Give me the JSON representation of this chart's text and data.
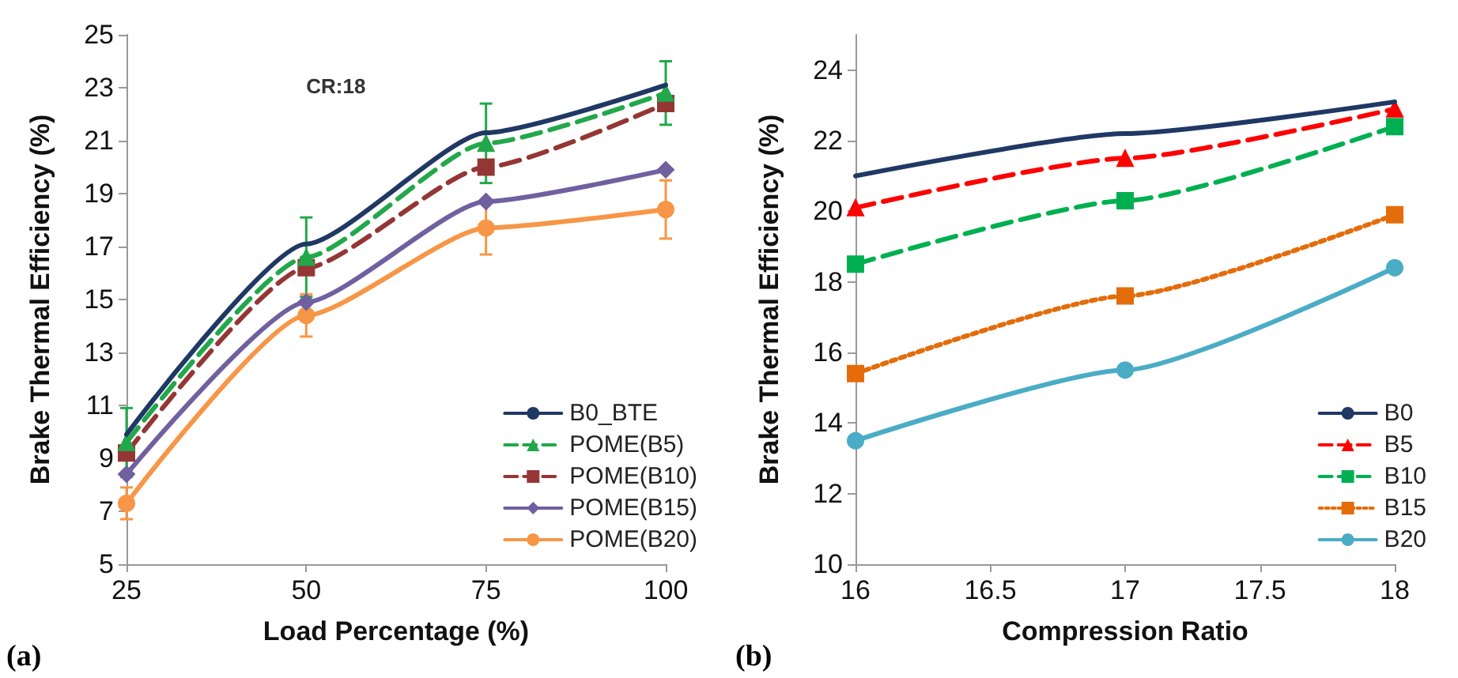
{
  "chart_data": [
    {
      "type": "line",
      "title": "(a)",
      "xlabel": "Load Percentage (%)",
      "ylabel": "Brake Thermal Efficiency (%)",
      "annotations": [
        "CR:18"
      ],
      "x": [
        25,
        50,
        75,
        100
      ],
      "xlim": [
        25,
        100
      ],
      "xticks": [
        25,
        50,
        75,
        100
      ],
      "ylim": [
        5,
        25
      ],
      "yticks": [
        5,
        7,
        9,
        11,
        13,
        15,
        17,
        19,
        21,
        23,
        25
      ],
      "legend": "bottom right",
      "grid": false,
      "series": [
        {
          "name": "B0_BTE",
          "color": "#1f3864",
          "values": [
            9.9,
            17.1,
            21.3,
            23.1
          ],
          "marker": "none",
          "line_style": "solid"
        },
        {
          "name": "POME(B5)",
          "color": "#22a84a",
          "values": [
            9.6,
            16.6,
            20.9,
            22.8
          ],
          "marker": "triangle",
          "line_style": "dashed",
          "errors": [
            1.3,
            1.5,
            1.5,
            1.2
          ]
        },
        {
          "name": "POME(B10)",
          "color": "#943634",
          "values": [
            9.2,
            16.2,
            20.0,
            22.4
          ],
          "marker": "square",
          "line_style": "dashed"
        },
        {
          "name": "POME(B15)",
          "color": "#7060a0",
          "values": [
            8.4,
            14.9,
            18.7,
            19.9
          ],
          "marker": "diamond",
          "line_style": "solid"
        },
        {
          "name": "POME(B20)",
          "color": "#f79646",
          "values": [
            7.3,
            14.4,
            17.7,
            18.4
          ],
          "marker": "circle",
          "line_style": "solid",
          "errors": [
            0.6,
            0.8,
            1.0,
            1.1
          ]
        }
      ]
    },
    {
      "type": "line",
      "title": "(b)",
      "xlabel": "Compression Ratio",
      "ylabel": "Brake Thermal Efficiency (%)",
      "x": [
        16,
        17,
        18
      ],
      "xlim": [
        16,
        18
      ],
      "xticks": [
        16,
        16.5,
        17,
        17.5,
        18
      ],
      "ylim": [
        10,
        25
      ],
      "yticks": [
        10,
        12,
        14,
        16,
        18,
        20,
        22,
        24
      ],
      "legend": "bottom right",
      "grid": false,
      "series": [
        {
          "name": "B0",
          "color": "#1f3864",
          "values": [
            21.0,
            22.2,
            23.1
          ],
          "marker": "none",
          "line_style": "solid"
        },
        {
          "name": "B5",
          "color": "#ff0000",
          "values": [
            20.1,
            21.5,
            22.9
          ],
          "marker": "triangle",
          "line_style": "dashed"
        },
        {
          "name": "B10",
          "color": "#00b050",
          "values": [
            18.5,
            20.3,
            22.4
          ],
          "marker": "square",
          "line_style": "dashed"
        },
        {
          "name": "B15",
          "color": "#e46c0a",
          "values": [
            15.4,
            17.6,
            19.9
          ],
          "marker": "cross",
          "line_style": "dotted"
        },
        {
          "name": "B20",
          "color": "#4bacc6",
          "values": [
            13.5,
            15.5,
            18.4
          ],
          "marker": "circle",
          "line_style": "solid"
        }
      ]
    }
  ]
}
